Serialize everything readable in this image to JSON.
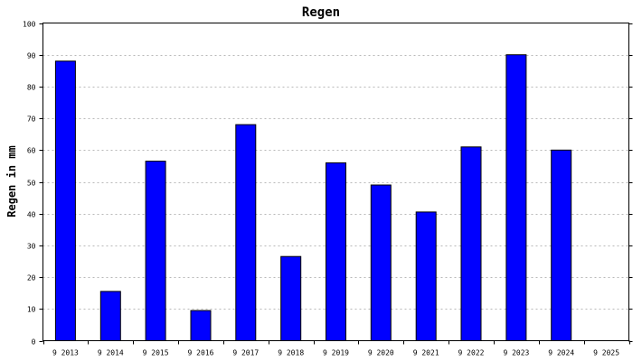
{
  "chart_data": {
    "type": "bar",
    "title": "Regen",
    "xlabel": "",
    "ylabel": "Regen in mm",
    "categories": [
      "9 2013",
      "9 2014",
      "9 2015",
      "9 2016",
      "9 2017",
      "9 2018",
      "9 2019",
      "9 2020",
      "9 2021",
      "9 2022",
      "9 2023",
      "9 2024",
      "9 2025"
    ],
    "values": [
      88,
      15.5,
      56.5,
      9.5,
      68,
      26.5,
      56,
      49,
      40.5,
      61,
      90,
      60,
      null
    ],
    "ylim": [
      0,
      100
    ],
    "yticks": [
      0,
      10,
      20,
      30,
      40,
      50,
      60,
      70,
      80,
      90,
      100
    ],
    "grid": true,
    "bar_color": "#0000ff",
    "legend": "none"
  }
}
